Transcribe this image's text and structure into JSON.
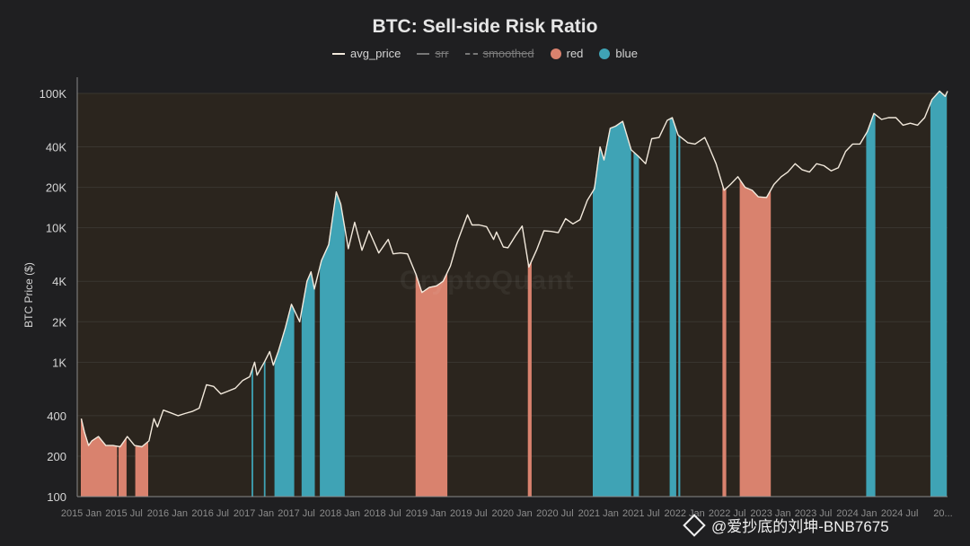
{
  "chart_data": {
    "type": "line",
    "title": "BTC: Sell-side Risk Ratio",
    "ylabel": "BTC Price ($)",
    "xlabel": "",
    "yscale": "log",
    "ylim": [
      100,
      100000
    ],
    "xlim": [
      "2014-12-15",
      "2025-01-20"
    ],
    "grid": true,
    "legend_position": "top-center",
    "colors": {
      "background": "#1f1f21",
      "plot_background": "#2b251e",
      "grid": "#3a3630",
      "avg_price": "#f2e9dc",
      "red": "#d9826e",
      "blue": "#3fa3b5"
    },
    "legend": [
      {
        "label": "avg_price",
        "marker": "line",
        "hidden": false
      },
      {
        "label": "srr",
        "marker": "line",
        "hidden": true
      },
      {
        "label": "smoothed",
        "marker": "dashed-line",
        "hidden": true
      },
      {
        "label": "red",
        "marker": "dot",
        "hidden": false
      },
      {
        "label": "blue",
        "marker": "dot",
        "hidden": false
      }
    ],
    "y_ticks": [
      {
        "value": 100,
        "label": "100"
      },
      {
        "value": 200,
        "label": "200"
      },
      {
        "value": 400,
        "label": "400"
      },
      {
        "value": 1000,
        "label": "1K"
      },
      {
        "value": 2000,
        "label": "2K"
      },
      {
        "value": 4000,
        "label": "4K"
      },
      {
        "value": 10000,
        "label": "10K"
      },
      {
        "value": 20000,
        "label": "20K"
      },
      {
        "value": 40000,
        "label": "40K"
      },
      {
        "value": 100000,
        "label": "100K"
      }
    ],
    "x_ticks": [
      {
        "date": "2015-01-01",
        "label": "2015 Jan"
      },
      {
        "date": "2015-07-01",
        "label": "2015 Jul"
      },
      {
        "date": "2016-01-01",
        "label": "2016 Jan"
      },
      {
        "date": "2016-07-01",
        "label": "2016 Jul"
      },
      {
        "date": "2017-01-01",
        "label": "2017 Jan"
      },
      {
        "date": "2017-07-01",
        "label": "2017 Jul"
      },
      {
        "date": "2018-01-01",
        "label": "2018 Jan"
      },
      {
        "date": "2018-07-01",
        "label": "2018 Jul"
      },
      {
        "date": "2019-01-01",
        "label": "2019 Jan"
      },
      {
        "date": "2019-07-01",
        "label": "2019 Jul"
      },
      {
        "date": "2020-01-01",
        "label": "2020 Jan"
      },
      {
        "date": "2020-07-01",
        "label": "2020 Jul"
      },
      {
        "date": "2021-01-01",
        "label": "2021 Jan"
      },
      {
        "date": "2021-07-01",
        "label": "2021 Jul"
      },
      {
        "date": "2022-01-01",
        "label": "2022 Jan"
      },
      {
        "date": "2022-07-01",
        "label": "2022 Jul"
      },
      {
        "date": "2023-01-01",
        "label": "2023 Jan"
      },
      {
        "date": "2023-07-01",
        "label": "2023 Jul"
      },
      {
        "date": "2024-01-01",
        "label": "2024 Jan"
      },
      {
        "date": "2024-07-01",
        "label": "2024 Jul"
      },
      {
        "date": "2025-01-01",
        "label": "20..."
      }
    ],
    "series": [
      {
        "name": "avg_price",
        "points": [
          [
            "2015-01-01",
            380
          ],
          [
            "2015-01-15",
            300
          ],
          [
            "2015-02-01",
            240
          ],
          [
            "2015-02-15",
            260
          ],
          [
            "2015-03-15",
            280
          ],
          [
            "2015-04-15",
            240
          ],
          [
            "2015-05-15",
            240
          ],
          [
            "2015-06-15",
            235
          ],
          [
            "2015-07-15",
            280
          ],
          [
            "2015-08-15",
            240
          ],
          [
            "2015-09-15",
            235
          ],
          [
            "2015-10-15",
            260
          ],
          [
            "2015-11-05",
            380
          ],
          [
            "2015-11-20",
            330
          ],
          [
            "2015-12-15",
            440
          ],
          [
            "2016-01-15",
            420
          ],
          [
            "2016-02-15",
            400
          ],
          [
            "2016-03-15",
            415
          ],
          [
            "2016-04-15",
            430
          ],
          [
            "2016-05-15",
            455
          ],
          [
            "2016-06-15",
            680
          ],
          [
            "2016-07-15",
            660
          ],
          [
            "2016-08-15",
            580
          ],
          [
            "2016-09-15",
            610
          ],
          [
            "2016-10-15",
            640
          ],
          [
            "2016-11-15",
            730
          ],
          [
            "2016-12-15",
            780
          ],
          [
            "2017-01-05",
            1000
          ],
          [
            "2017-01-15",
            800
          ],
          [
            "2017-02-15",
            1000
          ],
          [
            "2017-03-10",
            1200
          ],
          [
            "2017-03-25",
            950
          ],
          [
            "2017-04-15",
            1200
          ],
          [
            "2017-05-15",
            1800
          ],
          [
            "2017-06-10",
            2700
          ],
          [
            "2017-07-15",
            2000
          ],
          [
            "2017-08-15",
            4000
          ],
          [
            "2017-09-01",
            4700
          ],
          [
            "2017-09-15",
            3500
          ],
          [
            "2017-10-15",
            5700
          ],
          [
            "2017-11-15",
            7500
          ],
          [
            "2017-12-17",
            18500
          ],
          [
            "2018-01-05",
            15000
          ],
          [
            "2018-02-06",
            7000
          ],
          [
            "2018-03-05",
            11000
          ],
          [
            "2018-04-05",
            6800
          ],
          [
            "2018-05-05",
            9500
          ],
          [
            "2018-06-15",
            6500
          ],
          [
            "2018-07-25",
            8200
          ],
          [
            "2018-08-15",
            6400
          ],
          [
            "2018-09-15",
            6500
          ],
          [
            "2018-10-15",
            6400
          ],
          [
            "2018-11-20",
            4500
          ],
          [
            "2018-12-15",
            3300
          ],
          [
            "2019-01-15",
            3600
          ],
          [
            "2019-02-15",
            3700
          ],
          [
            "2019-03-15",
            4000
          ],
          [
            "2019-04-15",
            5200
          ],
          [
            "2019-05-15",
            7900
          ],
          [
            "2019-06-26",
            12500
          ],
          [
            "2019-07-15",
            10500
          ],
          [
            "2019-08-15",
            10500
          ],
          [
            "2019-09-15",
            10200
          ],
          [
            "2019-10-15",
            8200
          ],
          [
            "2019-10-27",
            9300
          ],
          [
            "2019-11-25",
            7200
          ],
          [
            "2019-12-15",
            7100
          ],
          [
            "2020-01-15",
            8700
          ],
          [
            "2020-02-13",
            10300
          ],
          [
            "2020-03-12",
            5100
          ],
          [
            "2020-04-15",
            6900
          ],
          [
            "2020-05-15",
            9500
          ],
          [
            "2020-06-15",
            9400
          ],
          [
            "2020-07-15",
            9200
          ],
          [
            "2020-08-15",
            11700
          ],
          [
            "2020-09-15",
            10700
          ],
          [
            "2020-10-15",
            11500
          ],
          [
            "2020-11-15",
            16000
          ],
          [
            "2020-12-15",
            19500
          ],
          [
            "2021-01-08",
            40000
          ],
          [
            "2021-01-25",
            32000
          ],
          [
            "2021-02-20",
            55000
          ],
          [
            "2021-03-15",
            57000
          ],
          [
            "2021-04-14",
            62000
          ],
          [
            "2021-05-20",
            38000
          ],
          [
            "2021-06-20",
            34000
          ],
          [
            "2021-07-20",
            30000
          ],
          [
            "2021-08-15",
            46000
          ],
          [
            "2021-09-15",
            47000
          ],
          [
            "2021-10-20",
            63000
          ],
          [
            "2021-11-10",
            66000
          ],
          [
            "2021-12-05",
            49000
          ],
          [
            "2022-01-15",
            43000
          ],
          [
            "2022-02-15",
            42000
          ],
          [
            "2022-03-28",
            47000
          ],
          [
            "2022-04-15",
            40000
          ],
          [
            "2022-05-15",
            30000
          ],
          [
            "2022-06-18",
            19000
          ],
          [
            "2022-07-15",
            21000
          ],
          [
            "2022-08-15",
            24000
          ],
          [
            "2022-09-15",
            20000
          ],
          [
            "2022-10-15",
            19000
          ],
          [
            "2022-11-10",
            17000
          ],
          [
            "2022-12-15",
            16800
          ],
          [
            "2023-01-15",
            21000
          ],
          [
            "2023-02-15",
            24000
          ],
          [
            "2023-03-15",
            26000
          ],
          [
            "2023-04-15",
            30000
          ],
          [
            "2023-05-15",
            27000
          ],
          [
            "2023-06-15",
            26000
          ],
          [
            "2023-07-15",
            30000
          ],
          [
            "2023-08-15",
            29000
          ],
          [
            "2023-09-15",
            26500
          ],
          [
            "2023-10-15",
            28000
          ],
          [
            "2023-11-15",
            37000
          ],
          [
            "2023-12-15",
            42000
          ],
          [
            "2024-01-15",
            42000
          ],
          [
            "2024-02-15",
            52000
          ],
          [
            "2024-03-14",
            71000
          ],
          [
            "2024-04-15",
            64000
          ],
          [
            "2024-05-15",
            66000
          ],
          [
            "2024-06-15",
            66000
          ],
          [
            "2024-07-15",
            58000
          ],
          [
            "2024-08-15",
            60000
          ],
          [
            "2024-09-15",
            58000
          ],
          [
            "2024-10-15",
            66000
          ],
          [
            "2024-11-15",
            90000
          ],
          [
            "2024-12-17",
            104000
          ],
          [
            "2025-01-10",
            95000
          ],
          [
            "2025-01-20",
            104000
          ]
        ]
      }
    ],
    "bands": [
      {
        "category": "red",
        "start": "2015-01-01",
        "end": "2015-05-31"
      },
      {
        "category": "red",
        "start": "2015-06-10",
        "end": "2015-07-10"
      },
      {
        "category": "red",
        "start": "2015-08-20",
        "end": "2015-10-10"
      },
      {
        "category": "blue",
        "start": "2016-12-25",
        "end": "2016-12-28"
      },
      {
        "category": "blue",
        "start": "2017-02-15",
        "end": "2017-02-18"
      },
      {
        "category": "blue",
        "start": "2017-04-01",
        "end": "2017-06-20"
      },
      {
        "category": "blue",
        "start": "2017-07-25",
        "end": "2017-09-15"
      },
      {
        "category": "blue",
        "start": "2017-10-10",
        "end": "2018-01-20"
      },
      {
        "category": "red",
        "start": "2018-11-20",
        "end": "2019-03-31"
      },
      {
        "category": "red",
        "start": "2020-03-10",
        "end": "2020-03-22"
      },
      {
        "category": "blue",
        "start": "2020-12-10",
        "end": "2021-05-18"
      },
      {
        "category": "blue",
        "start": "2021-06-01",
        "end": "2021-06-20"
      },
      {
        "category": "blue",
        "start": "2021-11-01",
        "end": "2021-11-25"
      },
      {
        "category": "blue",
        "start": "2021-12-08",
        "end": "2021-12-12"
      },
      {
        "category": "red",
        "start": "2022-06-13",
        "end": "2022-06-25"
      },
      {
        "category": "red",
        "start": "2022-08-25",
        "end": "2022-12-31"
      },
      {
        "category": "blue",
        "start": "2024-02-12",
        "end": "2024-03-18"
      },
      {
        "category": "blue",
        "start": "2024-11-10",
        "end": "2025-01-15"
      }
    ]
  },
  "watermark_text": "@爱抄底的刘坤-BNB7675",
  "background_mark": "CryptoQuant"
}
